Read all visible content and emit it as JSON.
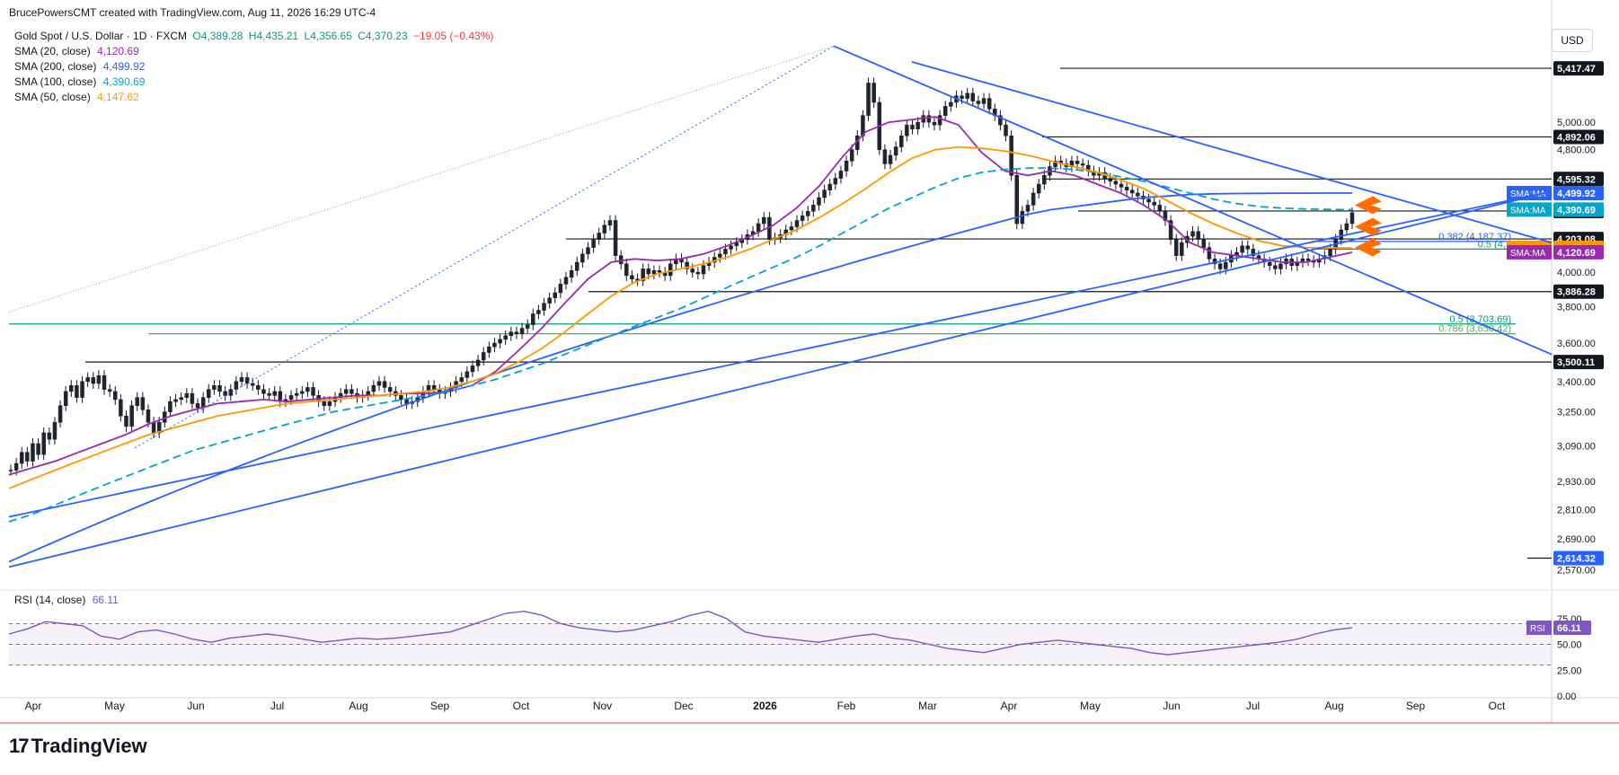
{
  "header": {
    "author": "BrucePowersCMT",
    "created_text": "created with TradingView.com, Aug 11, 2026 16:29 UTC-4"
  },
  "legend": {
    "symbol": "Gold Spot / U.S. Dollar · 1D · FXCM",
    "open": "O4,389.28",
    "high": "H4,435.21",
    "low": "L4,356.65",
    "close": "C4,370.23",
    "change": "−19.05 (−0.43%)",
    "indicators": [
      {
        "label": "SMA (20, close)",
        "value": "4,120.69",
        "color": "#9c27b0"
      },
      {
        "label": "SMA (200, close)",
        "value": "4,499.92",
        "color": "#2962ff"
      },
      {
        "label": "SMA (100, close)",
        "value": "4,390.69",
        "color": "#00a5c9"
      },
      {
        "label": "SMA (50, close)",
        "value": "4,147.62",
        "color": "#ff9800"
      }
    ]
  },
  "currency": "USD",
  "rsi_legend": {
    "label": "RSI (14, close)",
    "value": "66.11"
  },
  "footer": {
    "brand": "TradingView",
    "logo_mark": "17"
  },
  "chart_data": {
    "type": "line",
    "title": "",
    "y_axis": {
      "scale": "log",
      "range": [
        2500,
        5800
      ],
      "ticks": [
        "5,000.00",
        "4,800.00",
        "4,000.00",
        "3,800.00",
        "3,600.00",
        "3,400.00",
        "3,250.00",
        "3,090.00",
        "2,930.00",
        "2,810.00",
        "2,690.00",
        "2,570.00"
      ]
    },
    "x_axis": {
      "labels": [
        "Apr",
        "May",
        "Jun",
        "Jul",
        "Aug",
        "Sep",
        "Oct",
        "Nov",
        "Dec",
        "2026",
        "Feb",
        "Mar",
        "Apr",
        "May",
        "Jun",
        "Jul",
        "Aug",
        "Sep",
        "Oct"
      ]
    },
    "price_close": [
      2980,
      3010,
      3060,
      3020,
      3100,
      3050,
      3150,
      3120,
      3200,
      3280,
      3350,
      3380,
      3320,
      3400,
      3420,
      3390,
      3430,
      3360,
      3350,
      3310,
      3230,
      3180,
      3280,
      3320,
      3260,
      3200,
      3150,
      3200,
      3250,
      3300,
      3310,
      3320,
      3340,
      3290,
      3270,
      3320,
      3360,
      3380,
      3350,
      3330,
      3360,
      3400,
      3420,
      3390,
      3380,
      3360,
      3340,
      3330,
      3350,
      3300,
      3310,
      3330,
      3340,
      3350,
      3370,
      3330,
      3300,
      3280,
      3300,
      3320,
      3340,
      3360,
      3340,
      3320,
      3330,
      3350,
      3380,
      3400,
      3370,
      3350,
      3330,
      3310,
      3290,
      3300,
      3320,
      3350,
      3380,
      3360,
      3340,
      3350,
      3370,
      3400,
      3420,
      3450,
      3480,
      3510,
      3550,
      3580,
      3600,
      3620,
      3640,
      3660,
      3650,
      3680,
      3700,
      3760,
      3780,
      3820,
      3850,
      3880,
      3930,
      3970,
      4010,
      4060,
      4110,
      4150,
      4200,
      4240,
      4290,
      4320,
      4100,
      4050,
      3980,
      3960,
      3950,
      4020,
      3990,
      4010,
      4000,
      3980,
      4050,
      4080,
      4060,
      4020,
      4000,
      3990,
      4040,
      4060,
      4090,
      4110,
      4140,
      4160,
      4180,
      4200,
      4230,
      4250,
      4300,
      4340,
      4200,
      4210,
      4230,
      4260,
      4280,
      4320,
      4350,
      4380,
      4420,
      4470,
      4520,
      4560,
      4600,
      4650,
      4720,
      4800,
      4900,
      5050,
      5300,
      5150,
      4800,
      4700,
      4760,
      4820,
      4900,
      4980,
      4950,
      5000,
      5050,
      5000,
      4980,
      5050,
      5120,
      5150,
      5200,
      5180,
      5220,
      5160,
      5140,
      5180,
      5100,
      5050,
      4980,
      4900,
      4620,
      4300,
      4380,
      4420,
      4500,
      4560,
      4620,
      4680,
      4720,
      4700,
      4680,
      4720,
      4700,
      4690,
      4650,
      4620,
      4640,
      4600,
      4580,
      4560,
      4540,
      4520,
      4500,
      4480,
      4460,
      4440,
      4420,
      4380,
      4320,
      4200,
      4100,
      4180,
      4220,
      4250,
      4200,
      4150,
      4080,
      4050,
      4020,
      4060,
      4100,
      4120,
      4160,
      4140,
      4100,
      4080,
      4060,
      4040,
      4020,
      4050,
      4080,
      4040,
      4060,
      4080,
      4070,
      4060,
      4080,
      4100,
      4140,
      4200,
      4260,
      4300,
      4370
    ],
    "series": [
      {
        "name": "SMA (20, close)",
        "last": 4120.69,
        "color": "#9c27b0",
        "values": [
          2960,
          2990,
          3020,
          3060,
          3100,
          3140,
          3190,
          3230,
          3260,
          3290,
          3300,
          3310,
          3300,
          3310,
          3320,
          3330,
          3330,
          3340,
          3340,
          3350,
          3380,
          3450,
          3560,
          3680,
          3820,
          3960,
          4060,
          4080,
          4070,
          4080,
          4110,
          4160,
          4220,
          4290,
          4400,
          4550,
          4750,
          4930,
          5000,
          5020,
          5040,
          4980,
          4780,
          4650,
          4620,
          4650,
          4620,
          4560,
          4500,
          4420,
          4320,
          4180,
          4120,
          4100,
          4080,
          4060,
          4060,
          4090,
          4120
        ]
      },
      {
        "name": "SMA (200, close)",
        "last": 4499.92,
        "color": "#2962ff",
        "values": [
          2600,
          2640,
          2680,
          2720,
          2760,
          2800,
          2840,
          2880,
          2920,
          2960,
          3000,
          3040,
          3080,
          3120,
          3160,
          3200,
          3240,
          3280,
          3320,
          3360,
          3400,
          3440,
          3480,
          3520,
          3560,
          3600,
          3640,
          3680,
          3720,
          3760,
          3800,
          3840,
          3880,
          3920,
          3960,
          4000,
          4040,
          4080,
          4120,
          4160,
          4200,
          4240,
          4280,
          4320,
          4360,
          4390,
          4410,
          4430,
          4450,
          4470,
          4480,
          4490,
          4495,
          4497,
          4498,
          4499,
          4499,
          4500,
          4500
        ]
      },
      {
        "name": "SMA (100, close)",
        "last": 4390.69,
        "color": "#00a5c9",
        "values": [
          2760,
          2790,
          2830,
          2870,
          2910,
          2950,
          2990,
          3030,
          3070,
          3100,
          3130,
          3160,
          3190,
          3220,
          3250,
          3270,
          3290,
          3310,
          3330,
          3350,
          3380,
          3410,
          3450,
          3490,
          3540,
          3590,
          3640,
          3690,
          3740,
          3790,
          3850,
          3910,
          3970,
          4030,
          4090,
          4160,
          4240,
          4320,
          4400,
          4470,
          4540,
          4600,
          4640,
          4660,
          4670,
          4670,
          4660,
          4640,
          4610,
          4580,
          4540,
          4500,
          4460,
          4430,
          4410,
          4400,
          4395,
          4392,
          4390
        ]
      },
      {
        "name": "SMA (50, close)",
        "last": 4147.62,
        "color": "#ff9800",
        "values": [
          2900,
          2940,
          2980,
          3020,
          3060,
          3100,
          3140,
          3170,
          3200,
          3230,
          3250,
          3270,
          3290,
          3300,
          3310,
          3320,
          3330,
          3340,
          3350,
          3370,
          3400,
          3440,
          3500,
          3570,
          3660,
          3760,
          3860,
          3940,
          3990,
          4020,
          4050,
          4090,
          4140,
          4200,
          4260,
          4340,
          4430,
          4530,
          4640,
          4740,
          4800,
          4820,
          4810,
          4790,
          4760,
          4720,
          4680,
          4640,
          4590,
          4530,
          4450,
          4370,
          4300,
          4240,
          4190,
          4160,
          4150,
          4148,
          4147
        ]
      }
    ],
    "horizontal_levels": [
      {
        "value": "5,417.47",
        "y_value": 5417.47
      },
      {
        "value": "4,892.06",
        "y_value": 4892.06
      },
      {
        "value": "4,595.32",
        "y_value": 4595.32
      },
      {
        "value": "4,381.51",
        "y_value": 4381.51
      },
      {
        "value": "4,203.08",
        "y_value": 4203.08
      },
      {
        "value": "3,886.28",
        "y_value": 3886.28
      },
      {
        "value": "3,500.11",
        "y_value": 3500.11
      },
      {
        "value": "2,614.32",
        "y_value": 2614.32
      }
    ],
    "fib_levels": [
      {
        "label": "0.382 (4,187.37)",
        "y_value": 4187.37,
        "color": "#2962ff"
      },
      {
        "label": "0.5 (4,1",
        "y_value": 4140,
        "color": "#089981"
      },
      {
        "label": "0.5 (3,703.69)",
        "y_value": 3703.69,
        "color": "#089981"
      },
      {
        "label": "0.786 (3,650.42)",
        "y_value": 3650.42,
        "color": "#4caf50"
      }
    ],
    "axis_badges": [
      {
        "text": "SMA:MA",
        "value": "4,499.92",
        "color": "#2962ff",
        "y_value": 4499.92
      },
      {
        "text": "SMA:MA",
        "value": "4,390.69",
        "color": "#00a5c9",
        "y_value": 4390.69
      },
      {
        "text": "SMA:MA",
        "value": "4,147.62",
        "color": "#ff9800",
        "y_value": 4147.62
      },
      {
        "text": "SMA:MA",
        "value": "4,120.69",
        "color": "#9c27b0",
        "y_value": 4120.69
      }
    ],
    "rsi": {
      "name": "RSI (14, close)",
      "last": 66.11,
      "ticks": [
        "75.00",
        "50.00",
        "25.00",
        "0.00"
      ],
      "upper": 70,
      "lower": 30,
      "values": [
        60,
        65,
        72,
        70,
        68,
        58,
        55,
        62,
        64,
        60,
        55,
        52,
        56,
        58,
        60,
        58,
        55,
        52,
        54,
        56,
        55,
        56,
        58,
        60,
        62,
        68,
        74,
        80,
        82,
        78,
        70,
        66,
        64,
        62,
        64,
        68,
        72,
        78,
        82,
        75,
        62,
        58,
        56,
        54,
        52,
        55,
        58,
        60,
        56,
        54,
        50,
        46,
        44,
        42,
        46,
        50,
        52,
        54,
        52,
        50,
        48,
        46,
        42,
        40,
        42,
        44,
        46,
        48,
        50,
        52,
        55,
        60,
        64,
        66
      ]
    }
  }
}
